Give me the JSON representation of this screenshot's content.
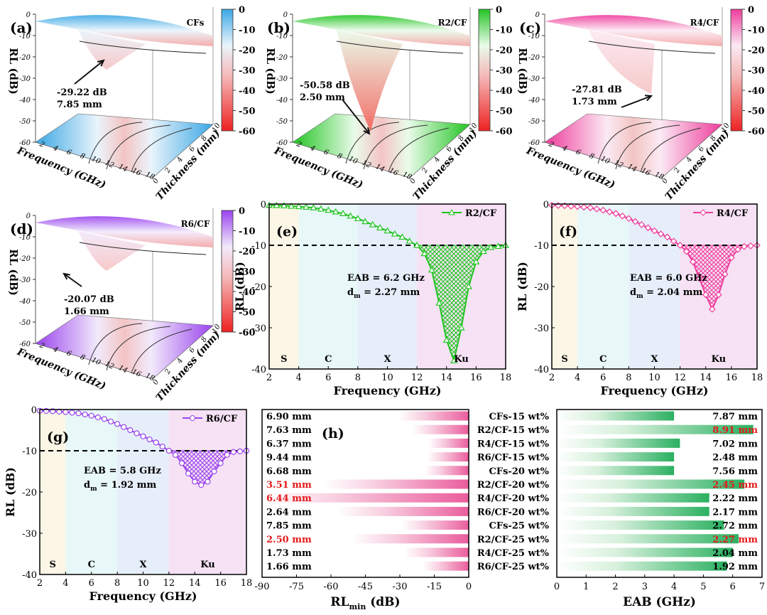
{
  "panels3d": [
    {
      "id": "a",
      "letter": "(a)",
      "name": "CFs",
      "callout_value": "-29.22 dB",
      "callout_thickness": "7.85 mm",
      "colorbar": {
        "top": "#3ba7e4",
        "mid": "#eaf4fb",
        "bottom": "#ee2222",
        "ticks": [
          "0",
          "-10",
          "-20",
          "-30",
          "-40",
          "-50",
          "-60"
        ]
      },
      "zticks": [
        "0",
        "-10",
        "-20",
        "-30",
        "-40",
        "-50",
        "-60"
      ],
      "freq_ticks": [
        "2",
        "4",
        "6",
        "8",
        "10",
        "12",
        "14",
        "16",
        "18"
      ],
      "thick_ticks": [
        "0",
        "2",
        "4",
        "6",
        "8",
        "10"
      ],
      "xlabel": "Frequency (GHz)",
      "ylabel": "Thickness (mm)",
      "zlabel": "RL (dB)"
    },
    {
      "id": "b",
      "letter": "(b)",
      "name": "R2/CF",
      "callout_value": "-50.58 dB",
      "callout_thickness": "2.50 mm",
      "colorbar": {
        "top": "#22c422",
        "mid": "#eafbea",
        "bottom": "#ee2222",
        "ticks": [
          "0",
          "-10",
          "-20",
          "-30",
          "-40",
          "-50",
          "-60"
        ]
      },
      "zticks": [
        "0",
        "-10",
        "-20",
        "-30",
        "-40",
        "-50",
        "-60"
      ],
      "freq_ticks": [
        "2",
        "4",
        "6",
        "8",
        "10",
        "12",
        "14",
        "16",
        "18"
      ],
      "thick_ticks": [
        "0",
        "2",
        "4",
        "6",
        "8",
        "10"
      ],
      "xlabel": "Frequency (GHz)",
      "ylabel": "Thickness (mm)",
      "zlabel": "RL (dB)"
    },
    {
      "id": "c",
      "letter": "(c)",
      "name": "R4/CF",
      "callout_value": "-27.81 dB",
      "callout_thickness": "1.73 mm",
      "colorbar": {
        "top": "#ee3c9c",
        "mid": "#fbeaf3",
        "bottom": "#ee2222",
        "ticks": [
          "0",
          "-10",
          "-20",
          "-30",
          "-40",
          "-50",
          "-60"
        ]
      },
      "zticks": [
        "0",
        "-10",
        "-20",
        "-30",
        "-40",
        "-50",
        "-60"
      ],
      "freq_ticks": [
        "2",
        "4",
        "6",
        "8",
        "10",
        "12",
        "14",
        "16",
        "18"
      ],
      "thick_ticks": [
        "0",
        "2",
        "4",
        "6",
        "8",
        "10"
      ],
      "xlabel": "Frequency (GHz)",
      "ylabel": "Thickness (mm)",
      "zlabel": "RL (dB)"
    },
    {
      "id": "d",
      "letter": "(d)",
      "name": "R6/CF",
      "callout_value": "-20.07 dB",
      "callout_thickness": "1.66 mm",
      "colorbar": {
        "top": "#9a44ee",
        "mid": "#f2eafb",
        "bottom": "#ee2222",
        "ticks": [
          "0",
          "-10",
          "-20",
          "-30",
          "-40",
          "-50",
          "-60"
        ]
      },
      "zticks": [
        "0",
        "-10",
        "-20",
        "-30",
        "-40",
        "-50",
        "-60"
      ],
      "freq_ticks": [
        "2",
        "4",
        "6",
        "8",
        "10",
        "12",
        "14",
        "16",
        "18"
      ],
      "thick_ticks": [
        "0",
        "2",
        "4",
        "6",
        "8",
        "10"
      ],
      "xlabel": "Frequency (GHz)",
      "ylabel": "Thickness (mm)",
      "zlabel": "RL (dB)"
    }
  ],
  "chart_data": [
    {
      "type": "line",
      "panel": "(e)",
      "series": [
        {
          "name": "R2/CF",
          "color": "#22c422",
          "x": [
            2,
            3,
            4,
            5,
            6,
            7,
            8,
            9,
            10,
            11,
            12,
            12.5,
            13,
            13.5,
            14,
            14.5,
            15,
            15.5,
            16,
            16.5,
            17,
            18
          ],
          "y": [
            -0.3,
            -0.4,
            -0.6,
            -0.9,
            -1.5,
            -2.3,
            -3.5,
            -5,
            -6.5,
            -8,
            -10,
            -12,
            -16,
            -24,
            -33,
            -38,
            -30,
            -20,
            -14,
            -11.5,
            -10.5,
            -10
          ]
        }
      ],
      "xlabel": "Frequency (GHz)",
      "ylabel": "RL (dB)",
      "xlim": [
        2,
        18
      ],
      "ylim": [
        -40,
        0
      ],
      "xticks": [
        "2",
        "4",
        "6",
        "8",
        "10",
        "12",
        "14",
        "16",
        "18"
      ],
      "yticks": [
        "0",
        "-10",
        "-20",
        "-30",
        "-40"
      ],
      "threshold": -10,
      "bands": [
        "S",
        "C",
        "X",
        "Ku"
      ],
      "eab_text": "EAB = 6.2 GHz",
      "dm_text": "2.27 mm"
    },
    {
      "type": "line",
      "panel": "(f)",
      "series": [
        {
          "name": "R4/CF",
          "color": "#ee3c9c",
          "x": [
            2,
            3,
            4,
            5,
            6,
            7,
            8,
            9,
            10,
            11,
            12,
            12.5,
            13,
            13.5,
            14,
            14.5,
            15,
            15.5,
            16,
            16.5,
            17,
            18
          ],
          "y": [
            -0.3,
            -0.4,
            -0.6,
            -0.9,
            -1.5,
            -2.3,
            -3.5,
            -5,
            -6.5,
            -8,
            -10,
            -11.5,
            -14,
            -18,
            -22,
            -25.5,
            -22,
            -17,
            -13,
            -11,
            -10.3,
            -10
          ]
        }
      ],
      "xlabel": "Frequency (GHz)",
      "ylabel": "RL (dB)",
      "xlim": [
        2,
        18
      ],
      "ylim": [
        -40,
        0
      ],
      "xticks": [
        "2",
        "4",
        "6",
        "8",
        "10",
        "12",
        "14",
        "16",
        "18"
      ],
      "yticks": [
        "0",
        "-10",
        "-20",
        "-30",
        "-40"
      ],
      "threshold": -10,
      "bands": [
        "S",
        "C",
        "X",
        "Ku"
      ],
      "eab_text": "EAB = 6.0 GHz",
      "dm_text": "2.04 mm"
    },
    {
      "type": "line",
      "panel": "(g)",
      "series": [
        {
          "name": "R6/CF",
          "color": "#9a44ee",
          "x": [
            2,
            3,
            4,
            5,
            6,
            7,
            8,
            9,
            10,
            11,
            12,
            12.5,
            13,
            13.5,
            14,
            14.5,
            15,
            15.5,
            16,
            16.5,
            17,
            18
          ],
          "y": [
            -0.3,
            -0.4,
            -0.6,
            -0.9,
            -1.5,
            -2.3,
            -3.5,
            -5,
            -6.5,
            -8,
            -10,
            -11,
            -13,
            -15.5,
            -17.5,
            -18.3,
            -17.5,
            -15,
            -13,
            -11,
            -10.3,
            -10
          ]
        }
      ],
      "xlabel": "Frequency (GHz)",
      "ylabel": "RL (dB)",
      "xlim": [
        2,
        18
      ],
      "ylim": [
        -40,
        0
      ],
      "xticks": [
        "2",
        "4",
        "6",
        "8",
        "10",
        "12",
        "14",
        "16",
        "18"
      ],
      "yticks": [
        "0",
        "-10",
        "-20",
        "-30",
        "-40"
      ],
      "threshold": -10,
      "bands": [
        "S",
        "C",
        "X",
        "Ku"
      ],
      "eab_text": "EAB = 5.8 GHz",
      "dm_text": "1.92 mm"
    },
    {
      "type": "bar",
      "panel": "(h)",
      "orientation": "horizontal",
      "categories": [
        "CFs-15 wt%",
        "R2/CF-15 wt%",
        "R4/CF-15 wt%",
        "R6/CF-15 wt%",
        "CFs-20 wt%",
        "R2/CF-20 wt%",
        "R4/CF-20 wt%",
        "R6/CF-20 wt%",
        "CFs-25 wt%",
        "R2/CF-25 wt%",
        "R4/CF-25 wt%",
        "R6/CF-25 wt%"
      ],
      "values": [
        -30.5,
        -24.5,
        -17.5,
        -18,
        -19,
        -63,
        -90,
        -57,
        -29.22,
        -50.58,
        -27.81,
        -20.07
      ],
      "bar_labels": [
        "6.90 mm",
        "7.63 mm",
        "6.37 mm",
        "9.44 mm",
        "6.68 mm",
        "3.51 mm",
        "6.44 mm",
        "2.64 mm",
        "7.85 mm",
        "2.50 mm",
        "1.73 mm",
        "1.66 mm"
      ],
      "highlight": [
        false,
        false,
        false,
        false,
        false,
        true,
        true,
        false,
        false,
        true,
        false,
        false
      ],
      "xlabel": "RL",
      "xlabel_sub": "min",
      "xlabel_unit": " (dB)",
      "xlim": [
        -90,
        0
      ],
      "xticks": [
        "-90",
        "-75",
        "-60",
        "-45",
        "-30",
        "-15",
        "0"
      ]
    },
    {
      "type": "bar",
      "panel": "EAB",
      "orientation": "horizontal",
      "categories": [
        "CFs-15 wt%",
        "R2/CF-15 wt%",
        "R4/CF-15 wt%",
        "R6/CF-15 wt%",
        "CFs-20 wt%",
        "R2/CF-20 wt%",
        "R4/CF-20 wt%",
        "R6/CF-20 wt%",
        "CFs-25 wt%",
        "R2/CF-25 wt%",
        "R4/CF-25 wt%",
        "R6/CF-25 wt%"
      ],
      "values": [
        4.0,
        6.7,
        4.2,
        4.0,
        4.0,
        6.4,
        5.2,
        5.2,
        5.7,
        6.2,
        6.0,
        5.8
      ],
      "bar_labels": [
        "7.87 mm",
        "8.91 mm",
        "7.02 mm",
        "2.48 mm",
        "7.56 mm",
        "2.45 mm",
        "2.22 mm",
        "2.17 mm",
        "2.72 mm",
        "2.27 mm",
        "2.04 mm",
        "1.92 mm"
      ],
      "highlight": [
        false,
        true,
        false,
        false,
        false,
        true,
        false,
        false,
        false,
        true,
        false,
        false
      ],
      "xlabel": "EAB (GHz)",
      "xlim": [
        0,
        7
      ],
      "xticks": [
        "0",
        "1",
        "2",
        "3",
        "4",
        "5",
        "6",
        "7"
      ]
    }
  ]
}
